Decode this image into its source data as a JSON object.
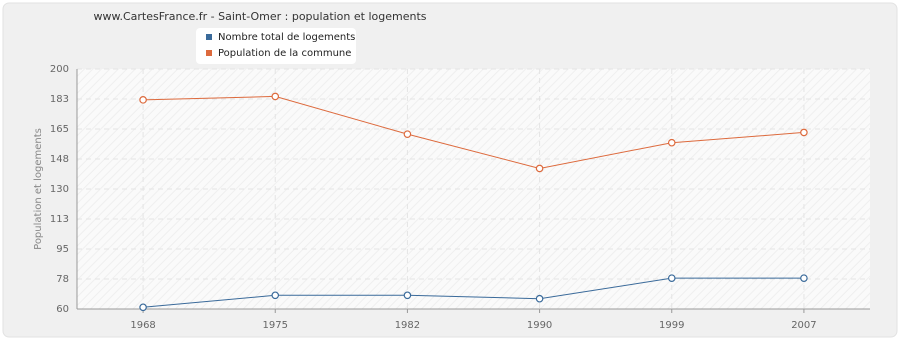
{
  "chart_data": {
    "type": "line",
    "title": "www.CartesFrance.fr - Saint-Omer : population et logements",
    "y_label": "Population et logements",
    "categories": [
      "1968",
      "1975",
      "1982",
      "1990",
      "1999",
      "2007"
    ],
    "series": [
      {
        "name": "Nombre total de logements",
        "color": "#3a6a9a",
        "values": [
          61,
          68,
          68,
          66,
          78,
          78
        ]
      },
      {
        "name": "Population de la commune",
        "color": "#dd6a3d",
        "values": [
          182,
          184,
          162,
          142,
          157,
          163
        ]
      }
    ],
    "ylim": [
      60,
      200
    ],
    "yticks": [
      60,
      {
        "value": 77.5,
        "label": "78"
      },
      95,
      {
        "value": 112.5,
        "label": "113"
      },
      130,
      {
        "value": 147.5,
        "label": "148"
      },
      165,
      {
        "value": 182.5,
        "label": "183"
      },
      200
    ],
    "grid": true
  }
}
